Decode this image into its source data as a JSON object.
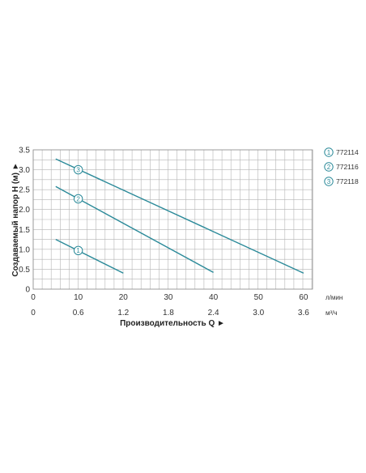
{
  "chart_data": {
    "type": "line",
    "ylabel": "Создаваемый напор H (м) ►",
    "xlabel": "Производительность Q ►",
    "ylim": [
      0,
      3.5
    ],
    "yticks": [
      "0",
      "0.5",
      "1.0",
      "1.5",
      "2.0",
      "2.5",
      "3.0",
      "3.5"
    ],
    "xlim": [
      0,
      62
    ],
    "x_primary_ticks": [
      "0",
      "10",
      "20",
      "30",
      "40",
      "50",
      "60"
    ],
    "x_primary_unit": "л/мин",
    "x_secondary_ticks": [
      "0",
      "0.6",
      "1.2",
      "1.8",
      "2.4",
      "3.0",
      "3.6"
    ],
    "x_secondary_unit": "м³/ч",
    "grid": true,
    "legend_position": "right",
    "series_color": "#2b8a99",
    "series": [
      {
        "name": "772114",
        "marker": "1",
        "x": [
          5,
          20
        ],
        "y": [
          1.25,
          0.4
        ],
        "marker_at": [
          10,
          0.97
        ]
      },
      {
        "name": "772116",
        "marker": "2",
        "x": [
          5,
          40
        ],
        "y": [
          2.58,
          0.42
        ],
        "marker_at": [
          10,
          2.27
        ]
      },
      {
        "name": "772118",
        "marker": "3",
        "x": [
          5,
          60
        ],
        "y": [
          3.27,
          0.4
        ],
        "marker_at": [
          10,
          3.0
        ]
      }
    ]
  }
}
